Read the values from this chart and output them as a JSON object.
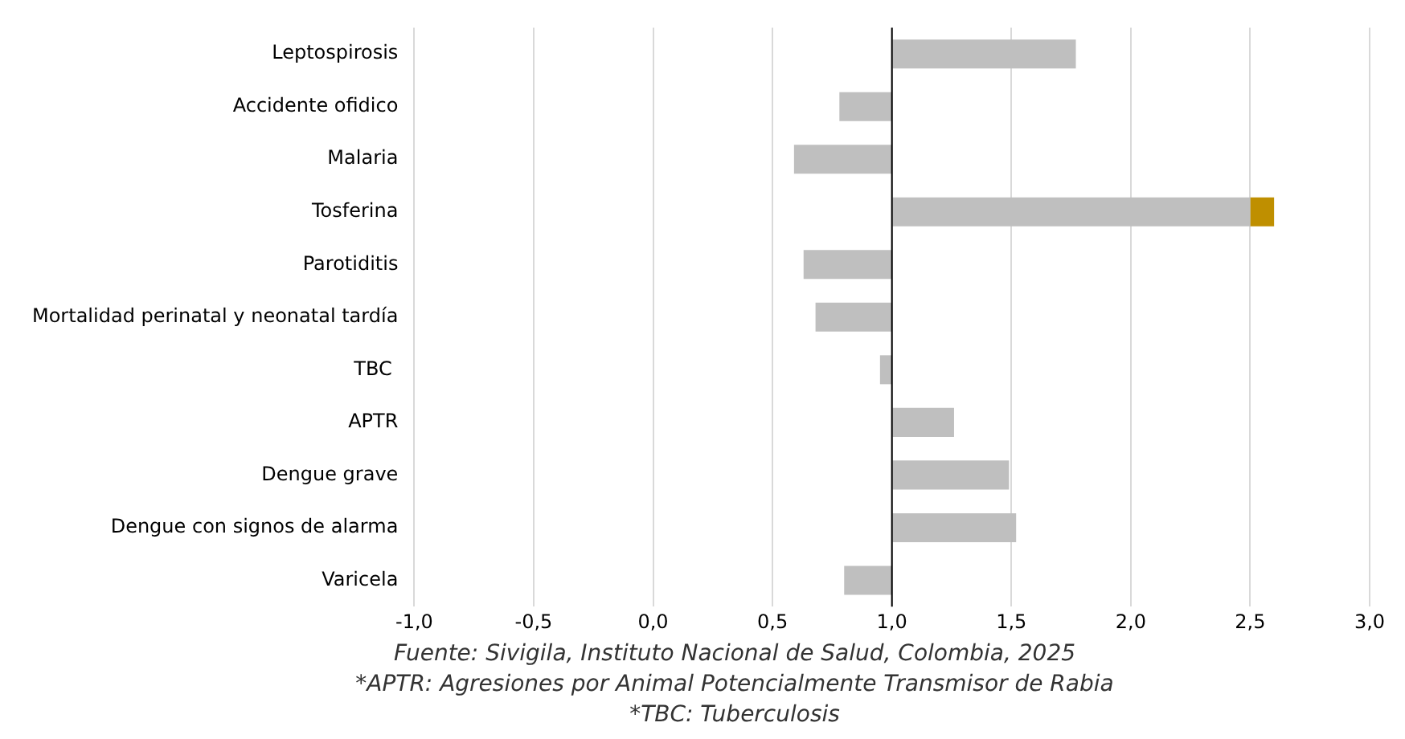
{
  "chart_data": {
    "type": "bar",
    "orientation": "horizontal",
    "categories": [
      "Leptospirosis",
      "Accidente ofidico",
      "Malaria",
      "Tosferina",
      "Parotiditis",
      "Mortalidad perinatal y neonatal tardía",
      "TBC ",
      "APTR",
      "Dengue grave",
      "Dengue con signos de alarma",
      "Varicela"
    ],
    "series": [
      {
        "color": "#bfbfbf",
        "base": [
          1,
          1,
          1,
          1,
          1,
          1,
          1,
          1,
          1,
          1,
          1
        ],
        "values": [
          0.77,
          -0.22,
          -0.41,
          1.5,
          -0.37,
          -0.32,
          -0.05,
          0.26,
          0.49,
          0.52,
          -0.2
        ]
      },
      {
        "color": "#bf8f00",
        "base": [
          null,
          null,
          null,
          2.5,
          null,
          null,
          null,
          null,
          null,
          null,
          null
        ],
        "values": [
          null,
          null,
          null,
          0.1,
          null,
          null,
          null,
          null,
          null,
          null,
          null
        ]
      }
    ],
    "xlim": [
      -1,
      3
    ],
    "xticks": [
      {
        "value": -1,
        "label": "-1,0"
      },
      {
        "value": -0.5,
        "label": "-0,5"
      },
      {
        "value": 0,
        "label": "0,0"
      },
      {
        "value": 0.5,
        "label": "0,5"
      },
      {
        "value": 1,
        "label": "1,0"
      },
      {
        "value": 1.5,
        "label": "1,5"
      },
      {
        "value": 2,
        "label": "2,0"
      },
      {
        "value": 2.5,
        "label": "2,5"
      },
      {
        "value": 3,
        "label": "3,0"
      }
    ],
    "ref_lines": [
      {
        "axis": "x",
        "value": 1,
        "color": "#000000"
      }
    ],
    "grid": "x",
    "legend": false,
    "annotations": [
      "Fuente: Sivigila, Instituto Nacional de Salud, Colombia, 2025",
      "*APTR: Agresiones por Animal Potencialmente Transmisor de Rabia",
      "*TBC: Tuberculosis"
    ]
  }
}
